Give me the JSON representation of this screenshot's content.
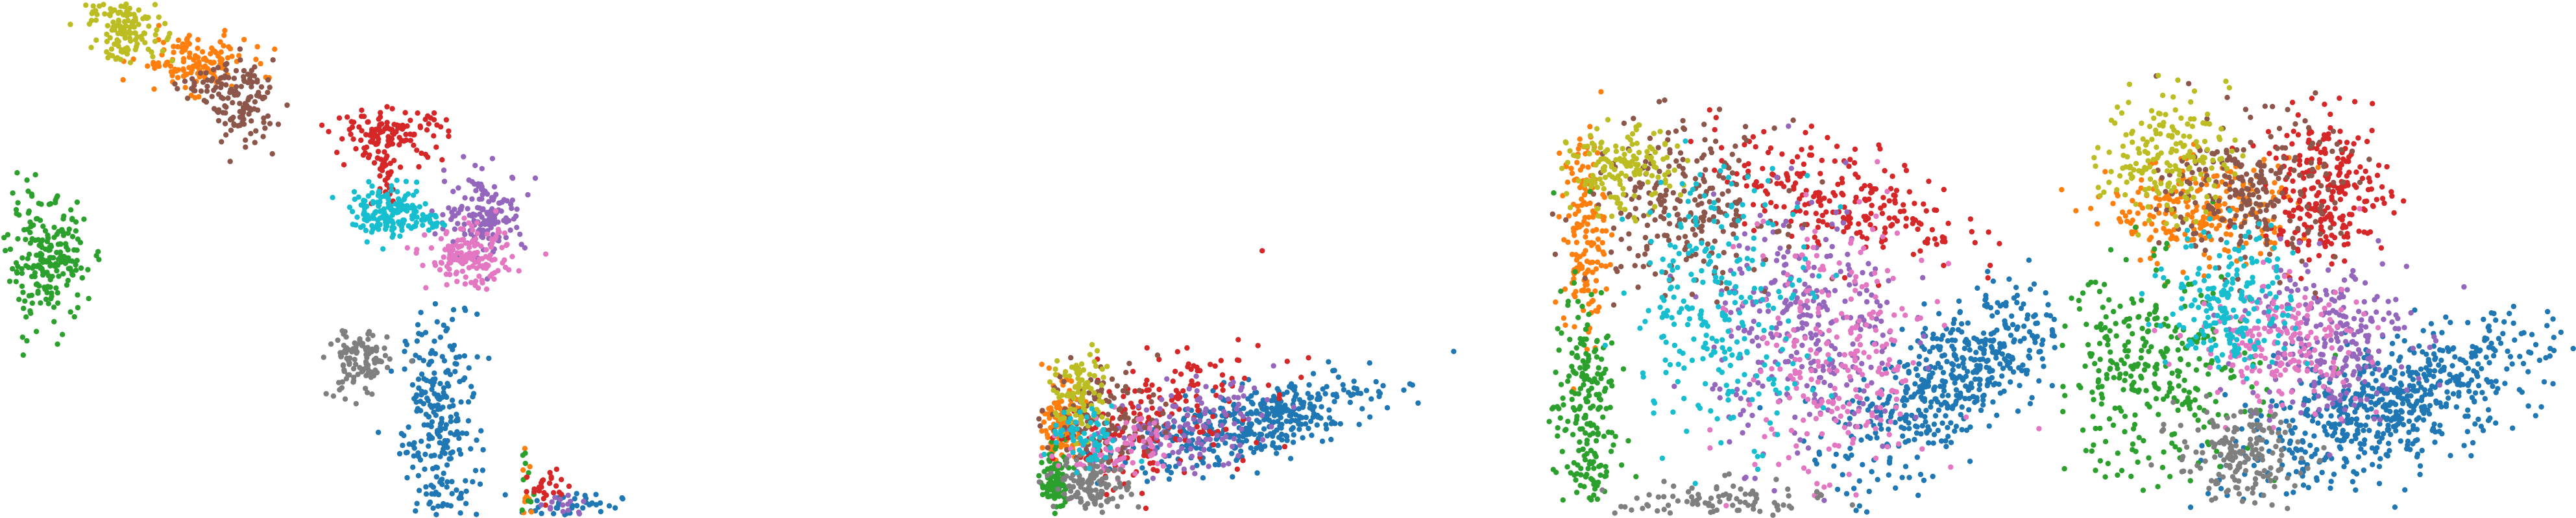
{
  "chart_data": [
    {
      "type": "scatter",
      "panel_label": "",
      "axes_visible": false,
      "grid": false,
      "legend": "none",
      "xlim": [
        0,
        100
      ],
      "ylim": [
        0,
        100
      ],
      "series": [
        {
          "color": "#1f77b4",
          "clusters": [
            {
              "cx": 70.5,
              "cy": 18.0,
              "sx": 3.0,
              "sy": 11.0,
              "n": 260
            },
            {
              "cx": 92.0,
              "cy": 2.5,
              "sx": 4.0,
              "sy": 1.2,
              "n": 40
            }
          ]
        },
        {
          "color": "#ff7f0e",
          "clusters": [
            {
              "cx": 31.0,
              "cy": 88.0,
              "sx": 4.5,
              "sy": 2.6,
              "n": 140
            },
            {
              "cx": 84.5,
              "cy": 4.5,
              "sx": 0.6,
              "sy": 3.0,
              "n": 10
            }
          ]
        },
        {
          "color": "#2ca02c",
          "clusters": [
            {
              "cx": 7.5,
              "cy": 49.5,
              "sx": 3.2,
              "sy": 6.0,
              "n": 220
            },
            {
              "cx": 84.5,
              "cy": 5.5,
              "sx": 0.6,
              "sy": 3.5,
              "n": 10
            }
          ]
        },
        {
          "color": "#d62728",
          "clusters": [
            {
              "cx": 62.5,
              "cy": 74.0,
              "sx": 4.5,
              "sy": 2.4,
              "n": 130
            },
            {
              "cx": 62.0,
              "cy": 66.0,
              "sx": 1.0,
              "sy": 3.0,
              "n": 30
            },
            {
              "cx": 88.0,
              "cy": 6.0,
              "sx": 2.0,
              "sy": 2.0,
              "n": 25
            }
          ]
        },
        {
          "color": "#9467bd",
          "clusters": [
            {
              "cx": 78.0,
              "cy": 59.0,
              "sx": 3.2,
              "sy": 3.8,
              "n": 150
            },
            {
              "cx": 90.0,
              "cy": 2.5,
              "sx": 2.0,
              "sy": 1.2,
              "n": 15
            }
          ]
        },
        {
          "color": "#8c564b",
          "clusters": [
            {
              "cx": 39.0,
              "cy": 80.0,
              "sx": 2.6,
              "sy": 4.0,
              "n": 120
            },
            {
              "cx": 33.0,
              "cy": 84.0,
              "sx": 3.0,
              "sy": 1.5,
              "n": 30
            }
          ]
        },
        {
          "color": "#e377c2",
          "clusters": [
            {
              "cx": 75.5,
              "cy": 50.0,
              "sx": 3.4,
              "sy": 2.8,
              "n": 150
            }
          ]
        },
        {
          "color": "#7f7f7f",
          "clusters": [
            {
              "cx": 57.5,
              "cy": 30.0,
              "sx": 2.4,
              "sy": 3.5,
              "n": 110
            }
          ]
        },
        {
          "color": "#bcbd22",
          "clusters": [
            {
              "cx": 20.5,
              "cy": 94.5,
              "sx": 3.0,
              "sy": 3.0,
              "n": 130
            },
            {
              "cx": 15.5,
              "cy": 98.0,
              "sx": 0.5,
              "sy": 0.5,
              "n": 5
            }
          ]
        },
        {
          "color": "#17becf",
          "clusters": [
            {
              "cx": 62.5,
              "cy": 59.0,
              "sx": 3.0,
              "sy": 2.4,
              "n": 150
            },
            {
              "cx": 69.0,
              "cy": 57.0,
              "sx": 2.0,
              "sy": 1.0,
              "n": 20
            }
          ]
        }
      ]
    },
    {
      "type": "scatter",
      "panel_label": "",
      "axes_visible": false,
      "grid": false,
      "legend": "none",
      "xlim": [
        0,
        100
      ],
      "ylim": [
        0,
        100
      ],
      "series": [
        {
          "color": "#1f77b4",
          "clusters": [
            {
              "cx": 46.0,
              "cy": 18.5,
              "sx": 13.0,
              "sy": 3.5,
              "n": 380,
              "tilt": 0.22
            }
          ]
        },
        {
          "color": "#ff7f0e",
          "clusters": [
            {
              "cx": 5.5,
              "cy": 18.5,
              "sx": 2.0,
              "sy": 3.5,
              "n": 140
            }
          ]
        },
        {
          "color": "#2ca02c",
          "clusters": [
            {
              "cx": 3.5,
              "cy": 7.0,
              "sx": 1.5,
              "sy": 3.0,
              "n": 110
            }
          ]
        },
        {
          "color": "#d62728",
          "clusters": [
            {
              "cx": 25.0,
              "cy": 19.0,
              "sx": 12.0,
              "sy": 6.0,
              "n": 200,
              "tilt": 0.3
            }
          ]
        },
        {
          "color": "#9467bd",
          "clusters": [
            {
              "cx": 30.0,
              "cy": 17.0,
              "sx": 10.0,
              "sy": 4.0,
              "n": 130,
              "tilt": 0.18
            }
          ]
        },
        {
          "color": "#8c564b",
          "clusters": [
            {
              "cx": 14.0,
              "cy": 19.5,
              "sx": 6.0,
              "sy": 5.0,
              "n": 120
            }
          ]
        },
        {
          "color": "#e377c2",
          "clusters": [
            {
              "cx": 17.0,
              "cy": 14.0,
              "sx": 6.0,
              "sy": 3.0,
              "n": 70
            }
          ]
        },
        {
          "color": "#7f7f7f",
          "clusters": [
            {
              "cx": 12.0,
              "cy": 6.5,
              "sx": 4.0,
              "sy": 2.5,
              "n": 120
            }
          ]
        },
        {
          "color": "#bcbd22",
          "clusters": [
            {
              "cx": 9.0,
              "cy": 24.0,
              "sx": 3.0,
              "sy": 4.0,
              "n": 90
            }
          ]
        },
        {
          "color": "#17becf",
          "clusters": [
            {
              "cx": 10.0,
              "cy": 15.0,
              "sx": 4.0,
              "sy": 3.0,
              "n": 60
            }
          ]
        }
      ]
    },
    {
      "type": "scatter",
      "panel_label": "",
      "axes_visible": false,
      "grid": false,
      "legend": "none",
      "xlim": [
        0,
        100
      ],
      "ylim": [
        0,
        100
      ],
      "series": [
        {
          "color": "#1f77b4",
          "clusters": [
            {
              "cx": 80.0,
              "cy": 27.0,
              "sx": 11.0,
              "sy": 7.0,
              "n": 520,
              "tilt": 0.55
            }
          ]
        },
        {
          "color": "#ff7f0e",
          "clusters": [
            {
              "cx": 9.0,
              "cy": 55.0,
              "sx": 2.0,
              "sy": 10.0,
              "n": 160
            }
          ]
        },
        {
          "color": "#2ca02c",
          "clusters": [
            {
              "cx": 9.0,
              "cy": 20.0,
              "sx": 3.0,
              "sy": 12.0,
              "n": 220
            }
          ]
        },
        {
          "color": "#d62728",
          "clusters": [
            {
              "cx": 58.0,
              "cy": 62.0,
              "sx": 12.0,
              "sy": 5.0,
              "n": 240,
              "tilt": -0.25
            }
          ]
        },
        {
          "color": "#9467bd",
          "clusters": [
            {
              "cx": 52.0,
              "cy": 36.0,
              "sx": 9.0,
              "sy": 12.0,
              "n": 300
            }
          ]
        },
        {
          "color": "#8c564b",
          "clusters": [
            {
              "cx": 28.0,
              "cy": 60.0,
              "sx": 9.0,
              "sy": 8.0,
              "n": 240
            }
          ]
        },
        {
          "color": "#e377c2",
          "clusters": [
            {
              "cx": 58.0,
              "cy": 30.0,
              "sx": 9.0,
              "sy": 14.0,
              "n": 260
            }
          ]
        },
        {
          "color": "#7f7f7f",
          "clusters": [
            {
              "cx": 35.0,
              "cy": 3.0,
              "sx": 10.0,
              "sy": 2.0,
              "n": 90
            }
          ]
        },
        {
          "color": "#bcbd22",
          "clusters": [
            {
              "cx": 16.0,
              "cy": 67.0,
              "sx": 5.0,
              "sy": 4.0,
              "n": 150
            }
          ]
        },
        {
          "color": "#17becf",
          "clusters": [
            {
              "cx": 36.0,
              "cy": 42.0,
              "sx": 9.0,
              "sy": 13.0,
              "n": 260
            }
          ]
        }
      ]
    },
    {
      "type": "scatter",
      "panel_label": "",
      "axes_visible": false,
      "grid": false,
      "legend": "none",
      "xlim": [
        0,
        100
      ],
      "ylim": [
        0,
        100
      ],
      "series": [
        {
          "color": "#1f77b4",
          "clusters": [
            {
              "cx": 64.0,
              "cy": 22.0,
              "sx": 15.0,
              "sy": 6.0,
              "n": 620,
              "tilt": 0.35
            }
          ]
        },
        {
          "color": "#ff7f0e",
          "clusters": [
            {
              "cx": 28.0,
              "cy": 59.0,
              "sx": 9.0,
              "sy": 5.0,
              "n": 240
            }
          ]
        },
        {
          "color": "#2ca02c",
          "clusters": [
            {
              "cx": 18.0,
              "cy": 28.0,
              "sx": 10.0,
              "sy": 10.0,
              "n": 320
            }
          ]
        },
        {
          "color": "#d62728",
          "clusters": [
            {
              "cx": 52.0,
              "cy": 63.0,
              "sx": 6.0,
              "sy": 7.0,
              "n": 260
            }
          ]
        },
        {
          "color": "#9467bd",
          "clusters": [
            {
              "cx": 52.0,
              "cy": 35.0,
              "sx": 8.0,
              "sy": 8.0,
              "n": 240
            }
          ]
        },
        {
          "color": "#8c564b",
          "clusters": [
            {
              "cx": 38.0,
              "cy": 63.0,
              "sx": 8.0,
              "sy": 7.0,
              "n": 240
            }
          ]
        },
        {
          "color": "#e377c2",
          "clusters": [
            {
              "cx": 43.0,
              "cy": 34.0,
              "sx": 8.0,
              "sy": 6.0,
              "n": 190
            }
          ]
        },
        {
          "color": "#7f7f7f",
          "clusters": [
            {
              "cx": 35.0,
              "cy": 12.0,
              "sx": 6.0,
              "sy": 4.5,
              "n": 170
            }
          ]
        },
        {
          "color": "#bcbd22",
          "clusters": [
            {
              "cx": 21.0,
              "cy": 70.0,
              "sx": 6.0,
              "sy": 6.0,
              "n": 180
            }
          ]
        },
        {
          "color": "#17becf",
          "clusters": [
            {
              "cx": 34.0,
              "cy": 42.0,
              "sx": 6.0,
              "sy": 7.0,
              "n": 200
            }
          ]
        }
      ]
    }
  ]
}
